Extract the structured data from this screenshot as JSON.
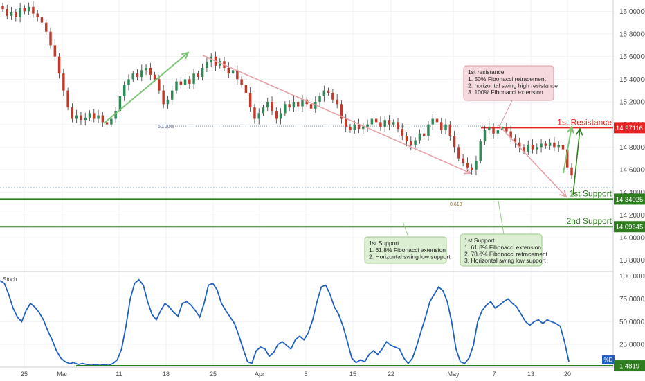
{
  "chart_data": [
    {
      "type": "candlestick",
      "pair_panel": "price",
      "ylim": [
        13.7,
        16.1
      ],
      "y_ticks": [
        "16.00000",
        "15.80000",
        "15.60000",
        "15.40000",
        "15.20000",
        "15.00000",
        "14.80000",
        "14.60000",
        "14.40000",
        "14.20000",
        "14.00000",
        "13.80000"
      ],
      "y_tick_values": [
        16.0,
        15.8,
        15.6,
        15.4,
        15.2,
        15.0,
        14.8,
        14.6,
        14.4,
        14.2,
        14.0,
        13.8
      ],
      "x_ticks": [
        "25",
        "Mar",
        "11",
        "18",
        "25",
        "Apr",
        "8",
        "15",
        "22",
        "May",
        "7",
        "13",
        "20"
      ],
      "close_series": [
        16.02,
        15.96,
        15.99,
        15.95,
        16.03,
        16.0,
        16.04,
        15.98,
        15.95,
        15.9,
        15.82,
        15.7,
        15.6,
        15.45,
        15.3,
        15.15,
        15.05,
        15.08,
        15.04,
        15.06,
        15.1,
        15.05,
        15.08,
        15.02,
        15.0,
        15.05,
        15.12,
        15.25,
        15.35,
        15.4,
        15.45,
        15.42,
        15.48,
        15.5,
        15.44,
        15.4,
        15.3,
        15.18,
        15.22,
        15.3,
        15.38,
        15.35,
        15.4,
        15.36,
        15.45,
        15.42,
        15.5,
        15.55,
        15.6,
        15.52,
        15.56,
        15.5,
        15.45,
        15.48,
        15.4,
        15.35,
        15.28,
        15.15,
        15.05,
        15.1,
        15.15,
        15.2,
        15.12,
        15.05,
        15.1,
        15.18,
        15.15,
        15.2,
        15.16,
        15.22,
        15.18,
        15.14,
        15.2,
        15.25,
        15.3,
        15.28,
        15.22,
        15.18,
        15.05,
        14.98,
        14.95,
        15.0,
        14.96,
        14.98,
        15.0,
        15.05,
        15.02,
        14.98,
        15.04,
        15.0,
        15.02,
        14.96,
        14.9,
        14.85,
        14.82,
        14.86,
        14.92,
        14.9,
        15.0,
        15.05,
        15.02,
        14.95,
        15.0,
        14.9,
        14.8,
        14.7,
        14.66,
        14.62,
        14.6,
        14.68,
        14.85,
        14.95,
        14.98,
        14.92,
        14.95,
        14.98,
        14.94,
        14.88,
        14.84,
        14.8,
        14.76,
        14.82,
        14.78,
        14.8,
        14.83,
        14.81,
        14.84,
        14.8,
        14.82,
        14.78,
        14.62,
        14.55
      ],
      "annotations": [
        {
          "label": "1st Resistance",
          "value": 14.97116,
          "value_text": "14.97116",
          "color": "#e62222"
        },
        {
          "label": "1st Support",
          "value": 14.34025,
          "value_text": "14.34025",
          "color": "#2e7d1e"
        },
        {
          "label": "2nd Support",
          "value": 14.09645,
          "value_text": "14.09645",
          "color": "#2e7d1e"
        },
        {
          "fib_text": "50.00%",
          "value": 14.985
        },
        {
          "fib_text": "0.618",
          "value": 14.33
        },
        {
          "dotted_level": 14.44
        }
      ],
      "callouts": [
        {
          "title": "1st resistance",
          "lines": [
            "1. 50% Fibonacci retracement",
            "2. horizontal swing high resistance",
            "3. 100% Fibonacci extension"
          ],
          "bg": "#f6d9df",
          "border": "#d89aa6"
        },
        {
          "title": "1st Support",
          "lines": [
            "1. 61.8% Fibonacci extension",
            "2. Horizontal swing low support"
          ],
          "bg": "#dcefd3",
          "border": "#9bc98a"
        },
        {
          "title": "1st Support",
          "lines": [
            "1. 61.8% Fibonacci extension",
            "2. 78.6% Fibonacci retracement",
            "3. Horizontal swing low support"
          ],
          "bg": "#dcefd3",
          "border": "#9bc98a"
        }
      ],
      "colors": {
        "up": "#2e8b57",
        "down": "#c0392b",
        "wick": "#333333",
        "arrow_green": "#7dc576",
        "arrow_red": "#e7a0a6",
        "bounce_arrow": "#2e7d1e"
      }
    },
    {
      "type": "line",
      "name": "Stoch",
      "ylim": [
        0,
        105
      ],
      "y_ticks": [
        "100.0000",
        "75.0000",
        "50.0000",
        "25.0000"
      ],
      "y_tick_values": [
        100,
        75,
        50,
        25
      ],
      "series_label": "%D",
      "values": [
        95,
        92,
        80,
        65,
        55,
        50,
        62,
        70,
        66,
        60,
        52,
        40,
        30,
        18,
        10,
        6,
        4,
        5,
        3,
        4,
        3,
        2,
        3,
        2,
        3,
        2,
        4,
        8,
        20,
        45,
        75,
        92,
        96,
        90,
        72,
        58,
        52,
        62,
        70,
        66,
        60,
        56,
        70,
        72,
        68,
        62,
        55,
        70,
        90,
        92,
        85,
        70,
        62,
        55,
        48,
        35,
        20,
        6,
        4,
        18,
        22,
        20,
        12,
        16,
        25,
        28,
        24,
        20,
        30,
        34,
        30,
        38,
        52,
        72,
        88,
        90,
        80,
        66,
        58,
        45,
        28,
        10,
        5,
        8,
        6,
        14,
        18,
        14,
        20,
        28,
        24,
        22,
        20,
        10,
        4,
        10,
        24,
        40,
        55,
        72,
        80,
        88,
        84,
        72,
        50,
        20,
        6,
        4,
        10,
        24,
        50,
        62,
        68,
        72,
        65,
        68,
        72,
        75,
        70,
        66,
        58,
        50,
        46,
        50,
        52,
        48,
        52,
        50,
        48,
        45,
        28,
        6
      ],
      "support_line": {
        "value": 1.4819,
        "value_text": "1.4819"
      },
      "line_color": "#1f5fbf"
    }
  ]
}
